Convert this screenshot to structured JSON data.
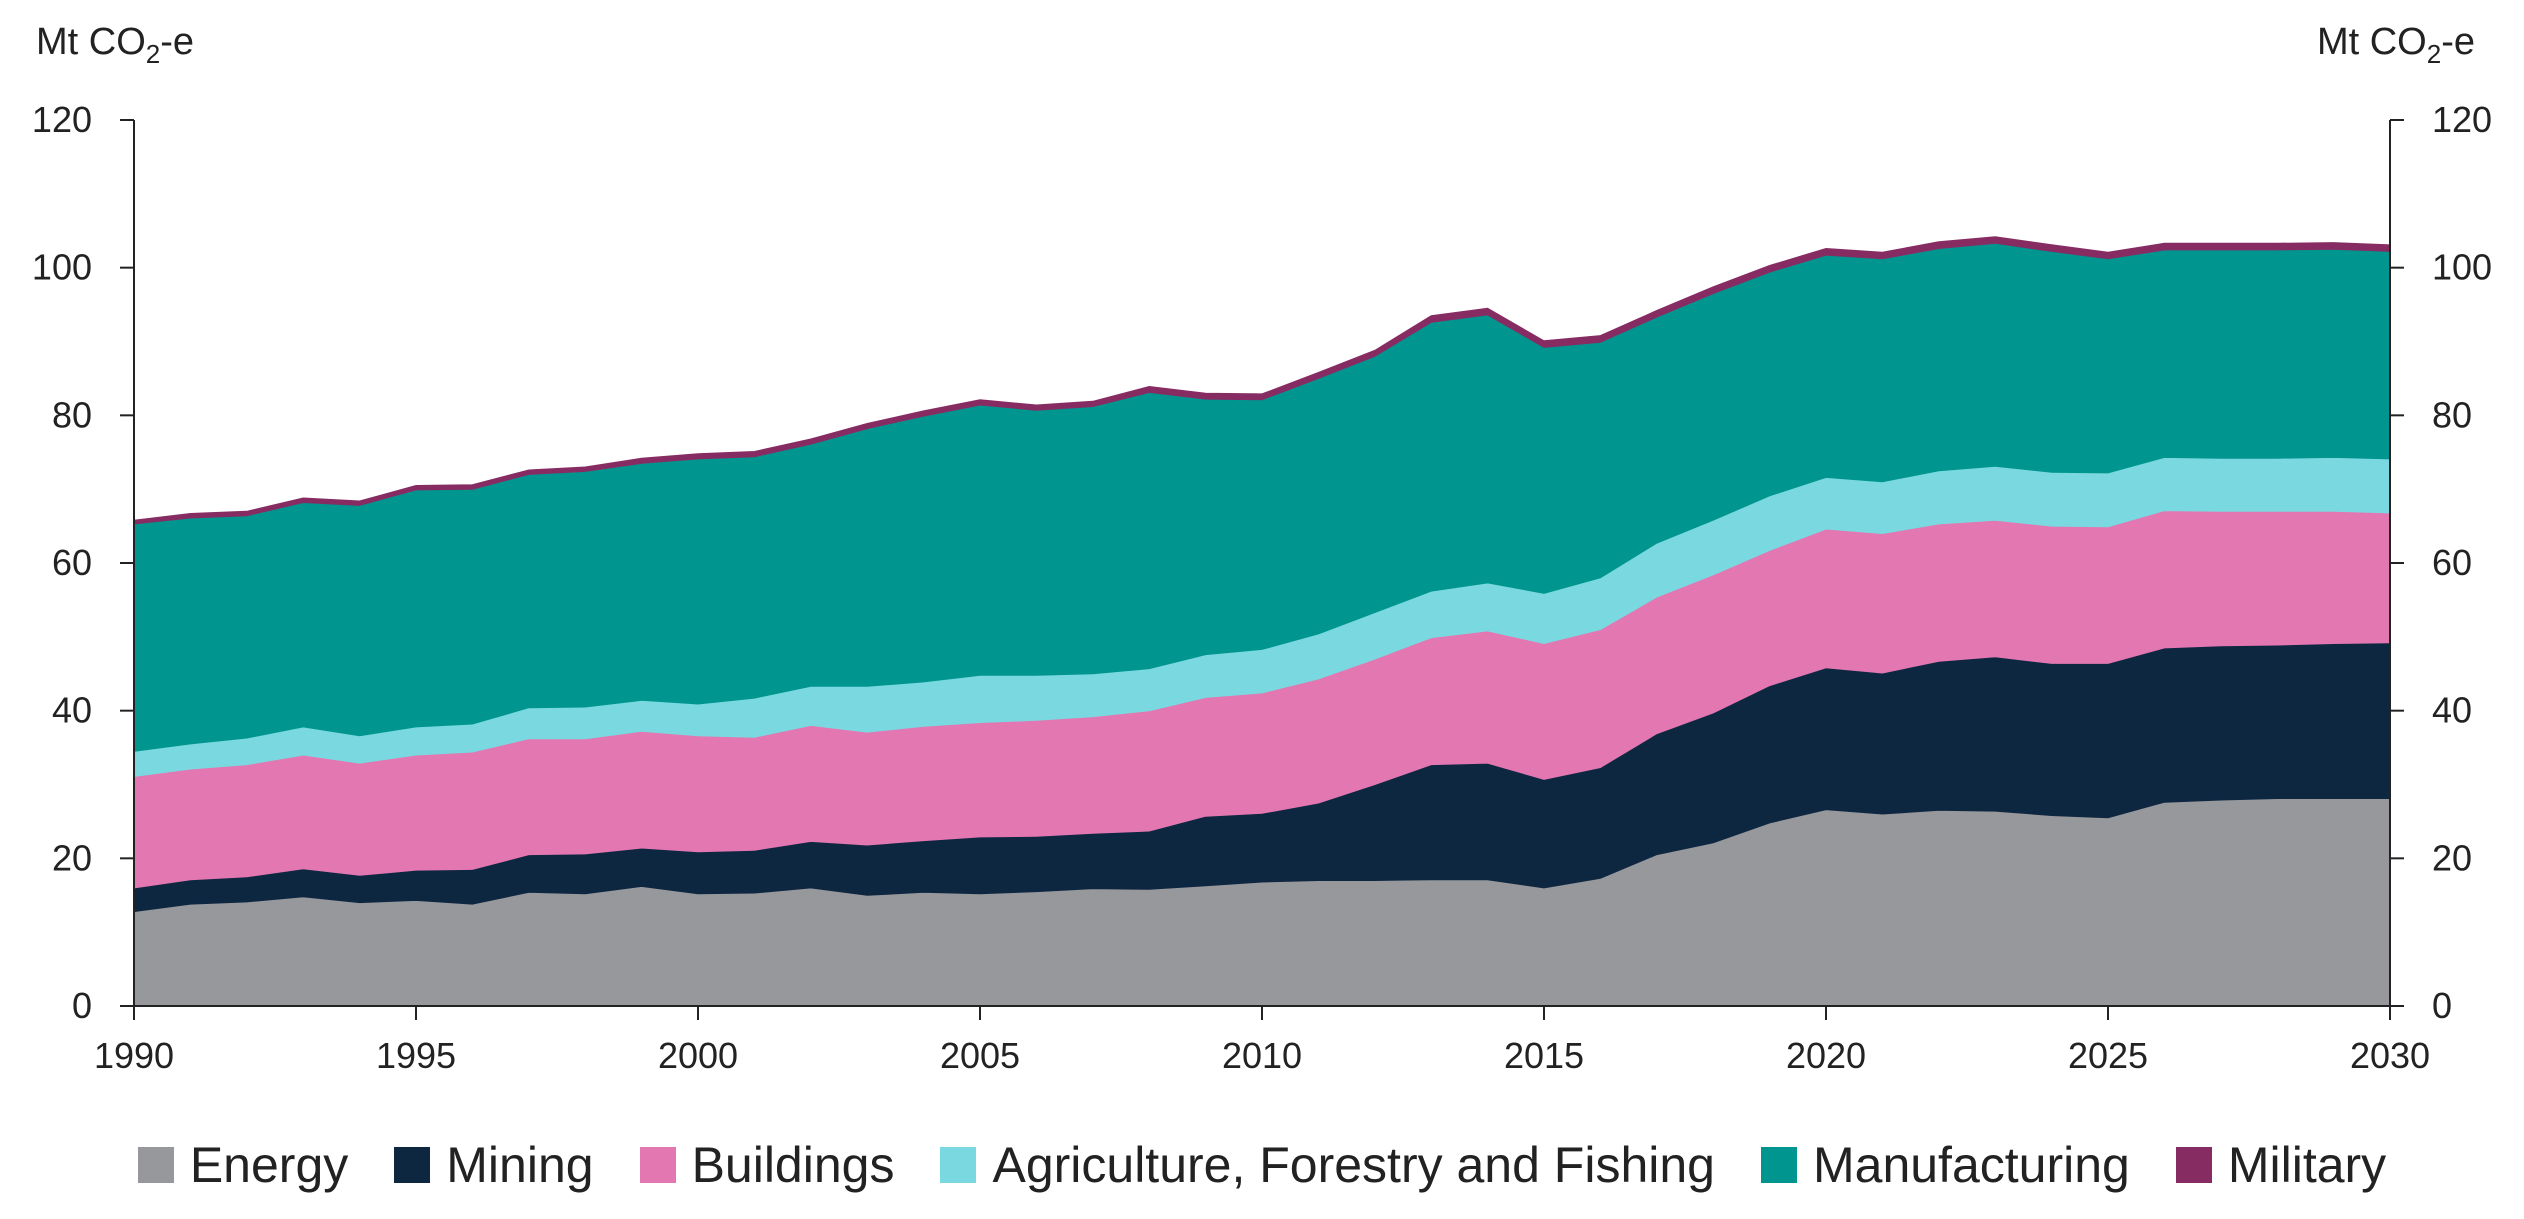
{
  "chart_data": {
    "type": "area",
    "stacked": true,
    "title": "",
    "ylabel_left": "Mt CO",
    "ylabel_right": "Mt CO",
    "ylabel_sub": "2",
    "ylabel_suffix": "-e",
    "xlim": [
      1990,
      2030
    ],
    "ylim": [
      0,
      120
    ],
    "x_ticks": [
      1990,
      1995,
      2000,
      2005,
      2010,
      2015,
      2020,
      2025,
      2030
    ],
    "y_ticks": [
      0,
      20,
      40,
      60,
      80,
      100,
      120
    ],
    "x_tick_labels": [
      "1990",
      "1995",
      "2000",
      "2005",
      "2010",
      "2015",
      "2020",
      "2025",
      "2030"
    ],
    "y_tick_labels_left": [
      "0",
      "20",
      "40",
      "60",
      "80",
      "100",
      "120"
    ],
    "y_tick_labels_right": [
      "0",
      "20",
      "40",
      "60",
      "80",
      "100",
      "120"
    ],
    "legend_position": "bottom",
    "x": [
      1990,
      1991,
      1992,
      1993,
      1994,
      1995,
      1996,
      1997,
      1998,
      1999,
      2000,
      2001,
      2002,
      2003,
      2004,
      2005,
      2006,
      2007,
      2008,
      2009,
      2010,
      2011,
      2012,
      2013,
      2014,
      2015,
      2016,
      2017,
      2018,
      2019,
      2020,
      2021,
      2022,
      2023,
      2024,
      2025,
      2026,
      2027,
      2028,
      2029,
      2030
    ],
    "series": [
      {
        "name": "Energy",
        "color": "#97989c",
        "values": [
          12.8,
          13.8,
          14.1,
          14.8,
          14.0,
          14.3,
          13.8,
          15.4,
          15.2,
          16.2,
          15.2,
          15.3,
          16.0,
          15.0,
          15.4,
          15.2,
          15.5,
          15.9,
          15.8,
          16.3,
          16.8,
          17.0,
          17.0,
          17.1,
          17.1,
          16.0,
          17.3,
          20.5,
          22.1,
          24.8,
          26.6,
          26.0,
          26.5,
          26.4,
          25.8,
          25.5,
          27.6,
          27.9,
          28.1,
          28.1,
          28.1
        ]
      },
      {
        "name": "Mining",
        "color": "#0e2741",
        "values": [
          3.2,
          3.3,
          3.4,
          3.8,
          3.7,
          4.1,
          4.7,
          5.1,
          5.4,
          5.2,
          5.7,
          5.8,
          6.3,
          6.8,
          7.0,
          7.7,
          7.5,
          7.5,
          7.9,
          9.4,
          9.3,
          10.5,
          13.0,
          15.6,
          15.8,
          14.7,
          15.0,
          16.4,
          17.6,
          18.6,
          19.2,
          19.1,
          20.2,
          20.9,
          20.6,
          20.9,
          20.9,
          20.9,
          20.8,
          21.0,
          21.1
        ]
      },
      {
        "name": "Buildings",
        "color": "#e377b2",
        "values": [
          15.1,
          15.0,
          15.2,
          15.4,
          15.2,
          15.6,
          15.9,
          15.7,
          15.6,
          15.8,
          15.7,
          15.3,
          15.7,
          15.3,
          15.5,
          15.5,
          15.7,
          15.8,
          16.3,
          16.1,
          16.3,
          16.8,
          17.0,
          17.2,
          17.9,
          18.4,
          18.7,
          18.5,
          18.7,
          18.3,
          18.8,
          18.9,
          18.6,
          18.5,
          18.6,
          18.5,
          18.6,
          18.2,
          18.1,
          17.9,
          17.6
        ]
      },
      {
        "name": "Agriculture, Forestry and Fishing",
        "color": "#7ad9e0",
        "values": [
          3.4,
          3.4,
          3.6,
          3.8,
          3.7,
          3.8,
          3.8,
          4.2,
          4.3,
          4.2,
          4.3,
          5.3,
          5.3,
          6.2,
          6.0,
          6.4,
          6.1,
          5.8,
          5.7,
          5.8,
          5.9,
          6.1,
          6.3,
          6.3,
          6.5,
          6.8,
          7.0,
          7.3,
          7.4,
          7.4,
          7.0,
          7.0,
          7.2,
          7.3,
          7.3,
          7.3,
          7.2,
          7.2,
          7.2,
          7.3,
          7.3
        ]
      },
      {
        "name": "Manufacturing",
        "color": "#00968f",
        "values": [
          30.8,
          30.6,
          30.1,
          30.4,
          31.2,
          32.1,
          31.8,
          31.6,
          31.9,
          32.1,
          33.2,
          32.7,
          32.8,
          34.9,
          36.0,
          36.6,
          35.9,
          36.2,
          37.4,
          34.6,
          33.8,
          34.6,
          34.7,
          36.4,
          36.3,
          33.3,
          31.9,
          30.6,
          30.7,
          30.3,
          30.1,
          30.2,
          30.1,
          30.2,
          29.9,
          29.0,
          28.1,
          28.2,
          28.2,
          28.2,
          28.1
        ]
      },
      {
        "name": "Military",
        "color": "#862c63",
        "values": [
          0.5,
          0.6,
          0.6,
          0.6,
          0.6,
          0.6,
          0.6,
          0.6,
          0.6,
          0.7,
          0.7,
          0.7,
          0.7,
          0.7,
          0.7,
          0.7,
          0.7,
          0.7,
          0.8,
          0.8,
          0.8,
          0.8,
          0.8,
          0.9,
          0.9,
          0.9,
          0.9,
          0.9,
          0.9,
          0.9,
          0.9,
          0.9,
          0.9,
          0.9,
          0.9,
          0.9,
          0.9,
          0.9,
          0.9,
          0.9,
          0.9
        ]
      }
    ]
  }
}
